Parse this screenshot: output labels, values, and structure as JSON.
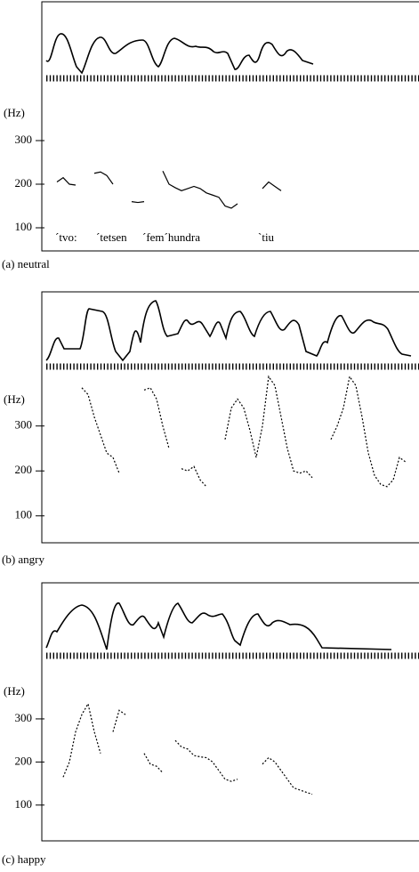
{
  "chart_data": [
    {
      "type": "line",
      "caption": "(a) neutral",
      "y_label": "(Hz)",
      "color": "#000000",
      "ylim": [
        50,
        350
      ],
      "yticks": [
        100,
        200,
        300
      ],
      "syllables": [
        "´tvo:",
        "´tetsen",
        "´fem´hundra",
        "`tiu"
      ],
      "values": [
        null,
        null,
        205,
        215,
        200,
        198,
        null,
        null,
        225,
        228,
        220,
        200,
        null,
        null,
        160,
        158,
        160,
        null,
        null,
        230,
        200,
        192,
        185,
        190,
        195,
        190,
        180,
        175,
        170,
        150,
        145,
        155,
        null,
        null,
        null,
        190,
        205,
        195,
        185,
        null,
        null,
        null,
        null,
        null,
        null,
        null,
        null,
        null,
        null,
        null,
        null,
        null,
        null,
        null,
        null,
        null,
        null,
        null,
        null,
        null
      ]
    },
    {
      "type": "line",
      "caption": "(b) angry",
      "y_label": "(Hz)",
      "color": "#000000",
      "ylim": [
        50,
        450
      ],
      "yticks": [
        100,
        200,
        300
      ],
      "values": [
        null,
        null,
        null,
        null,
        null,
        null,
        385,
        370,
        320,
        280,
        240,
        230,
        195,
        null,
        null,
        null,
        380,
        385,
        360,
        300,
        250,
        null,
        205,
        200,
        210,
        180,
        165,
        null,
        null,
        270,
        340,
        360,
        340,
        290,
        230,
        300,
        410,
        390,
        320,
        250,
        200,
        195,
        200,
        185,
        null,
        null,
        270,
        300,
        340,
        410,
        390,
        320,
        240,
        190,
        170,
        165,
        180,
        230,
        220,
        null
      ]
    },
    {
      "type": "line",
      "caption": "(c) happy",
      "y_label": "(Hz)",
      "color": "#000000",
      "ylim": [
        50,
        400
      ],
      "yticks": [
        100,
        200,
        300
      ],
      "values": [
        null,
        null,
        null,
        165,
        200,
        270,
        310,
        335,
        270,
        220,
        null,
        270,
        320,
        310,
        null,
        null,
        220,
        195,
        190,
        175,
        null,
        250,
        235,
        230,
        215,
        212,
        210,
        200,
        180,
        160,
        155,
        160,
        null,
        null,
        null,
        195,
        210,
        200,
        180,
        160,
        140,
        135,
        130,
        125,
        null,
        null,
        null,
        null,
        null,
        null,
        null,
        null,
        null,
        null,
        null,
        null,
        null,
        null,
        null,
        null
      ]
    }
  ]
}
